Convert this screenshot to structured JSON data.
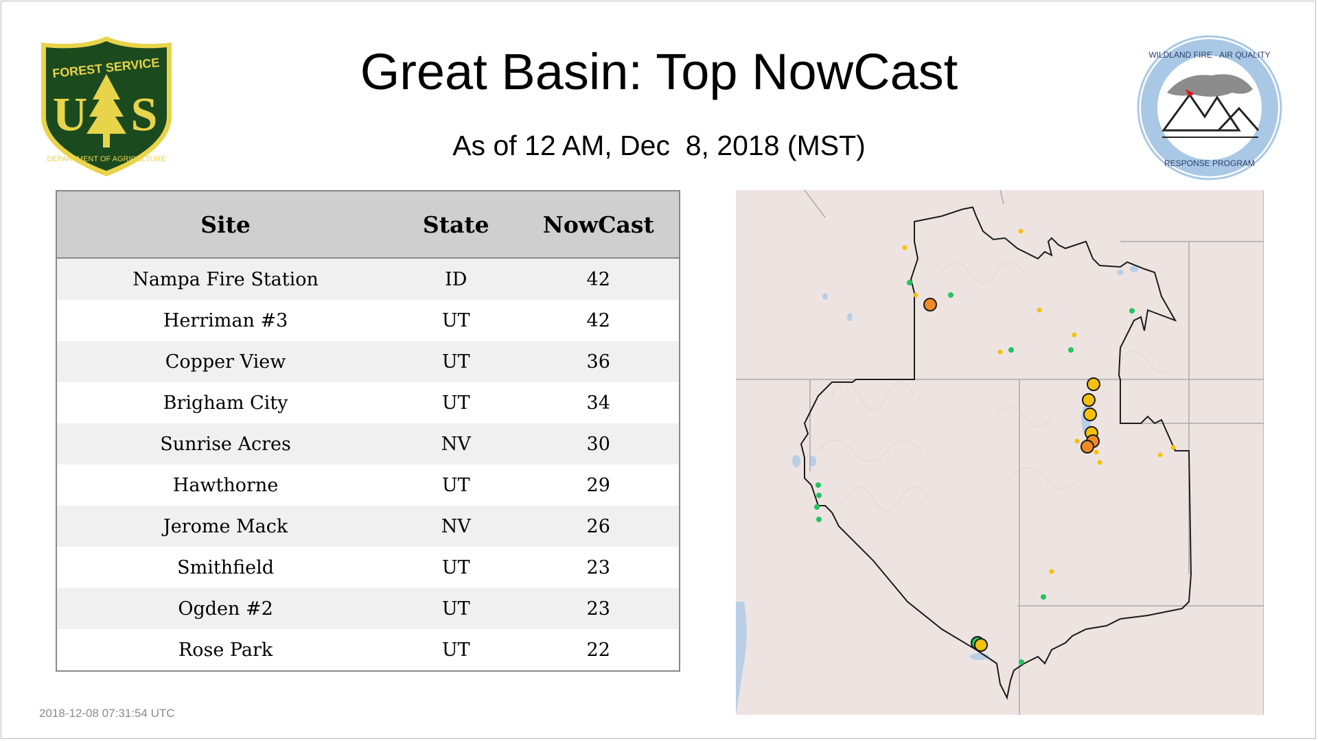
{
  "header": {
    "title": "Great Basin: Top NowCast",
    "subtitle": "As of 12 AM, Dec  8, 2018 (MST)"
  },
  "logos": {
    "left": {
      "icon": "forest-service-shield-icon",
      "top_text": "FOREST SERVICE",
      "letters": "U S",
      "bottom_text": "DEPARTMENT OF AGRICULTURE",
      "colors": {
        "green": "#1c4a1f",
        "yellow": "#e8d44a"
      }
    },
    "right": {
      "icon": "wildland-fire-air-quality-icon",
      "top_text": "WILDLAND FIRE · AIR QUALITY",
      "bottom_text": "RESPONSE PROGRAM",
      "colors": {
        "ring": "#a9c8e6",
        "text": "#2c3e6b"
      }
    }
  },
  "table": {
    "headers": [
      "Site",
      "State",
      "NowCast"
    ],
    "rows": [
      {
        "site": "Nampa Fire Station",
        "state": "ID",
        "nowcast": "42"
      },
      {
        "site": "Herriman #3",
        "state": "UT",
        "nowcast": "42"
      },
      {
        "site": "Copper View",
        "state": "UT",
        "nowcast": "36"
      },
      {
        "site": "Brigham City",
        "state": "UT",
        "nowcast": "34"
      },
      {
        "site": "Sunrise Acres",
        "state": "NV",
        "nowcast": "30"
      },
      {
        "site": "Hawthorne",
        "state": "UT",
        "nowcast": "29"
      },
      {
        "site": "Jerome Mack",
        "state": "NV",
        "nowcast": "26"
      },
      {
        "site": "Smithfield",
        "state": "UT",
        "nowcast": "23"
      },
      {
        "site": "Ogden #2",
        "state": "UT",
        "nowcast": "23"
      },
      {
        "site": "Rose Park",
        "state": "UT",
        "nowcast": "22"
      }
    ]
  },
  "map": {
    "region": "Great Basin",
    "colors": {
      "background": "#ede4e2",
      "water": "#b8cfe6",
      "boundary": "#1a1a1a",
      "state_lines": "#aaaaaa",
      "good": "#22c55e",
      "moderate": "#f4c20d",
      "usg": "#f08a24"
    }
  },
  "footer": {
    "timestamp": "2018-12-08 07:31:54 UTC"
  }
}
